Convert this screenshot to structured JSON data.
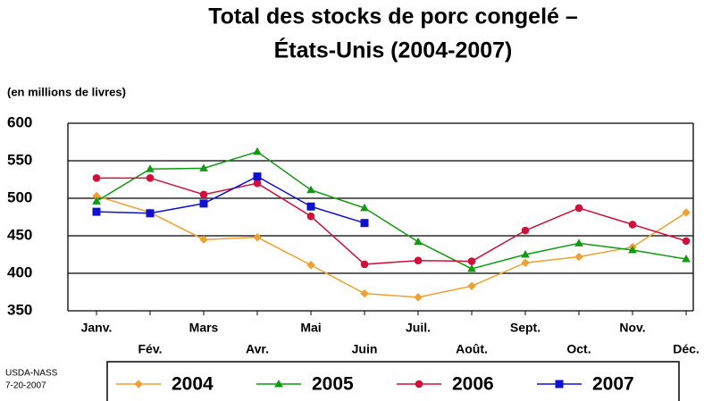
{
  "chart_data": {
    "type": "line",
    "title": [
      "Total des stocks de porc congelé –",
      "États-Unis (2004-2007)"
    ],
    "ylabel": "(en millions de livres)",
    "source": [
      "USDA-NASS",
      "7-20-2007"
    ],
    "categories": [
      "Janv.",
      "Fév.",
      "Mars",
      "Avr.",
      "Mai",
      "Juin",
      "Juil.",
      "Août.",
      "Sept.",
      "Oct.",
      "Nov.",
      "Déc."
    ],
    "series": [
      {
        "name": "2004",
        "color": "#f0a030",
        "marker": "diamond",
        "values": [
          503,
          481,
          445,
          448,
          411,
          373,
          368,
          383,
          414,
          422,
          435,
          481
        ]
      },
      {
        "name": "2005",
        "color": "#109a10",
        "marker": "triangle",
        "values": [
          496,
          539,
          540,
          562,
          511,
          487,
          442,
          406,
          425,
          440,
          431,
          419
        ]
      },
      {
        "name": "2006",
        "color": "#d0103a",
        "marker": "circle",
        "values": [
          527,
          527,
          505,
          520,
          476,
          412,
          417,
          416,
          457,
          487,
          465,
          443
        ]
      },
      {
        "name": "2007",
        "color": "#1010d0",
        "marker": "square",
        "values": [
          482,
          480,
          493,
          529,
          489,
          467,
          null,
          null,
          null,
          null,
          null,
          null
        ]
      }
    ],
    "ylim": [
      350,
      600
    ],
    "yticks": [
      350,
      400,
      450,
      500,
      550,
      600
    ],
    "grid": true
  }
}
